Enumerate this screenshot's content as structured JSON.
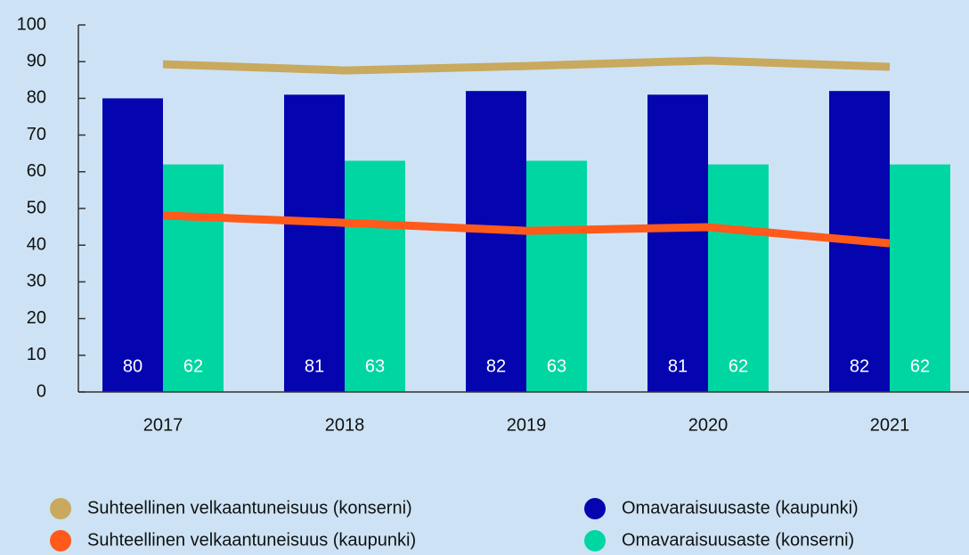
{
  "chart_data": {
    "type": "bar",
    "categories": [
      "2017",
      "2018",
      "2019",
      "2020",
      "2021"
    ],
    "series": [
      {
        "name": "Suhteellinen velkaantuneisuus (konserni)",
        "type": "line",
        "color": "#c8a95e",
        "values": [
          89.3,
          87.6,
          88.8,
          90.3,
          88.6
        ]
      },
      {
        "name": "Suhteellinen velkaantuneisuus (kaupunki)",
        "type": "line",
        "color": "#ff5a1a",
        "values": [
          48.1,
          46.1,
          43.9,
          44.9,
          40.5
        ]
      },
      {
        "name": "Omavaraisuusaste (kaupunki)",
        "type": "bar",
        "color": "#0505b0",
        "values": [
          80,
          81,
          82,
          81,
          82
        ]
      },
      {
        "name": "Omavaraisuusaste (konserni)",
        "type": "bar",
        "color": "#00d6a2",
        "values": [
          62,
          63,
          63,
          62,
          62
        ]
      }
    ],
    "ylim": [
      0,
      100
    ],
    "yticks": [
      0,
      10,
      20,
      30,
      40,
      50,
      60,
      70,
      80,
      90,
      100
    ],
    "legend": "bottom"
  }
}
